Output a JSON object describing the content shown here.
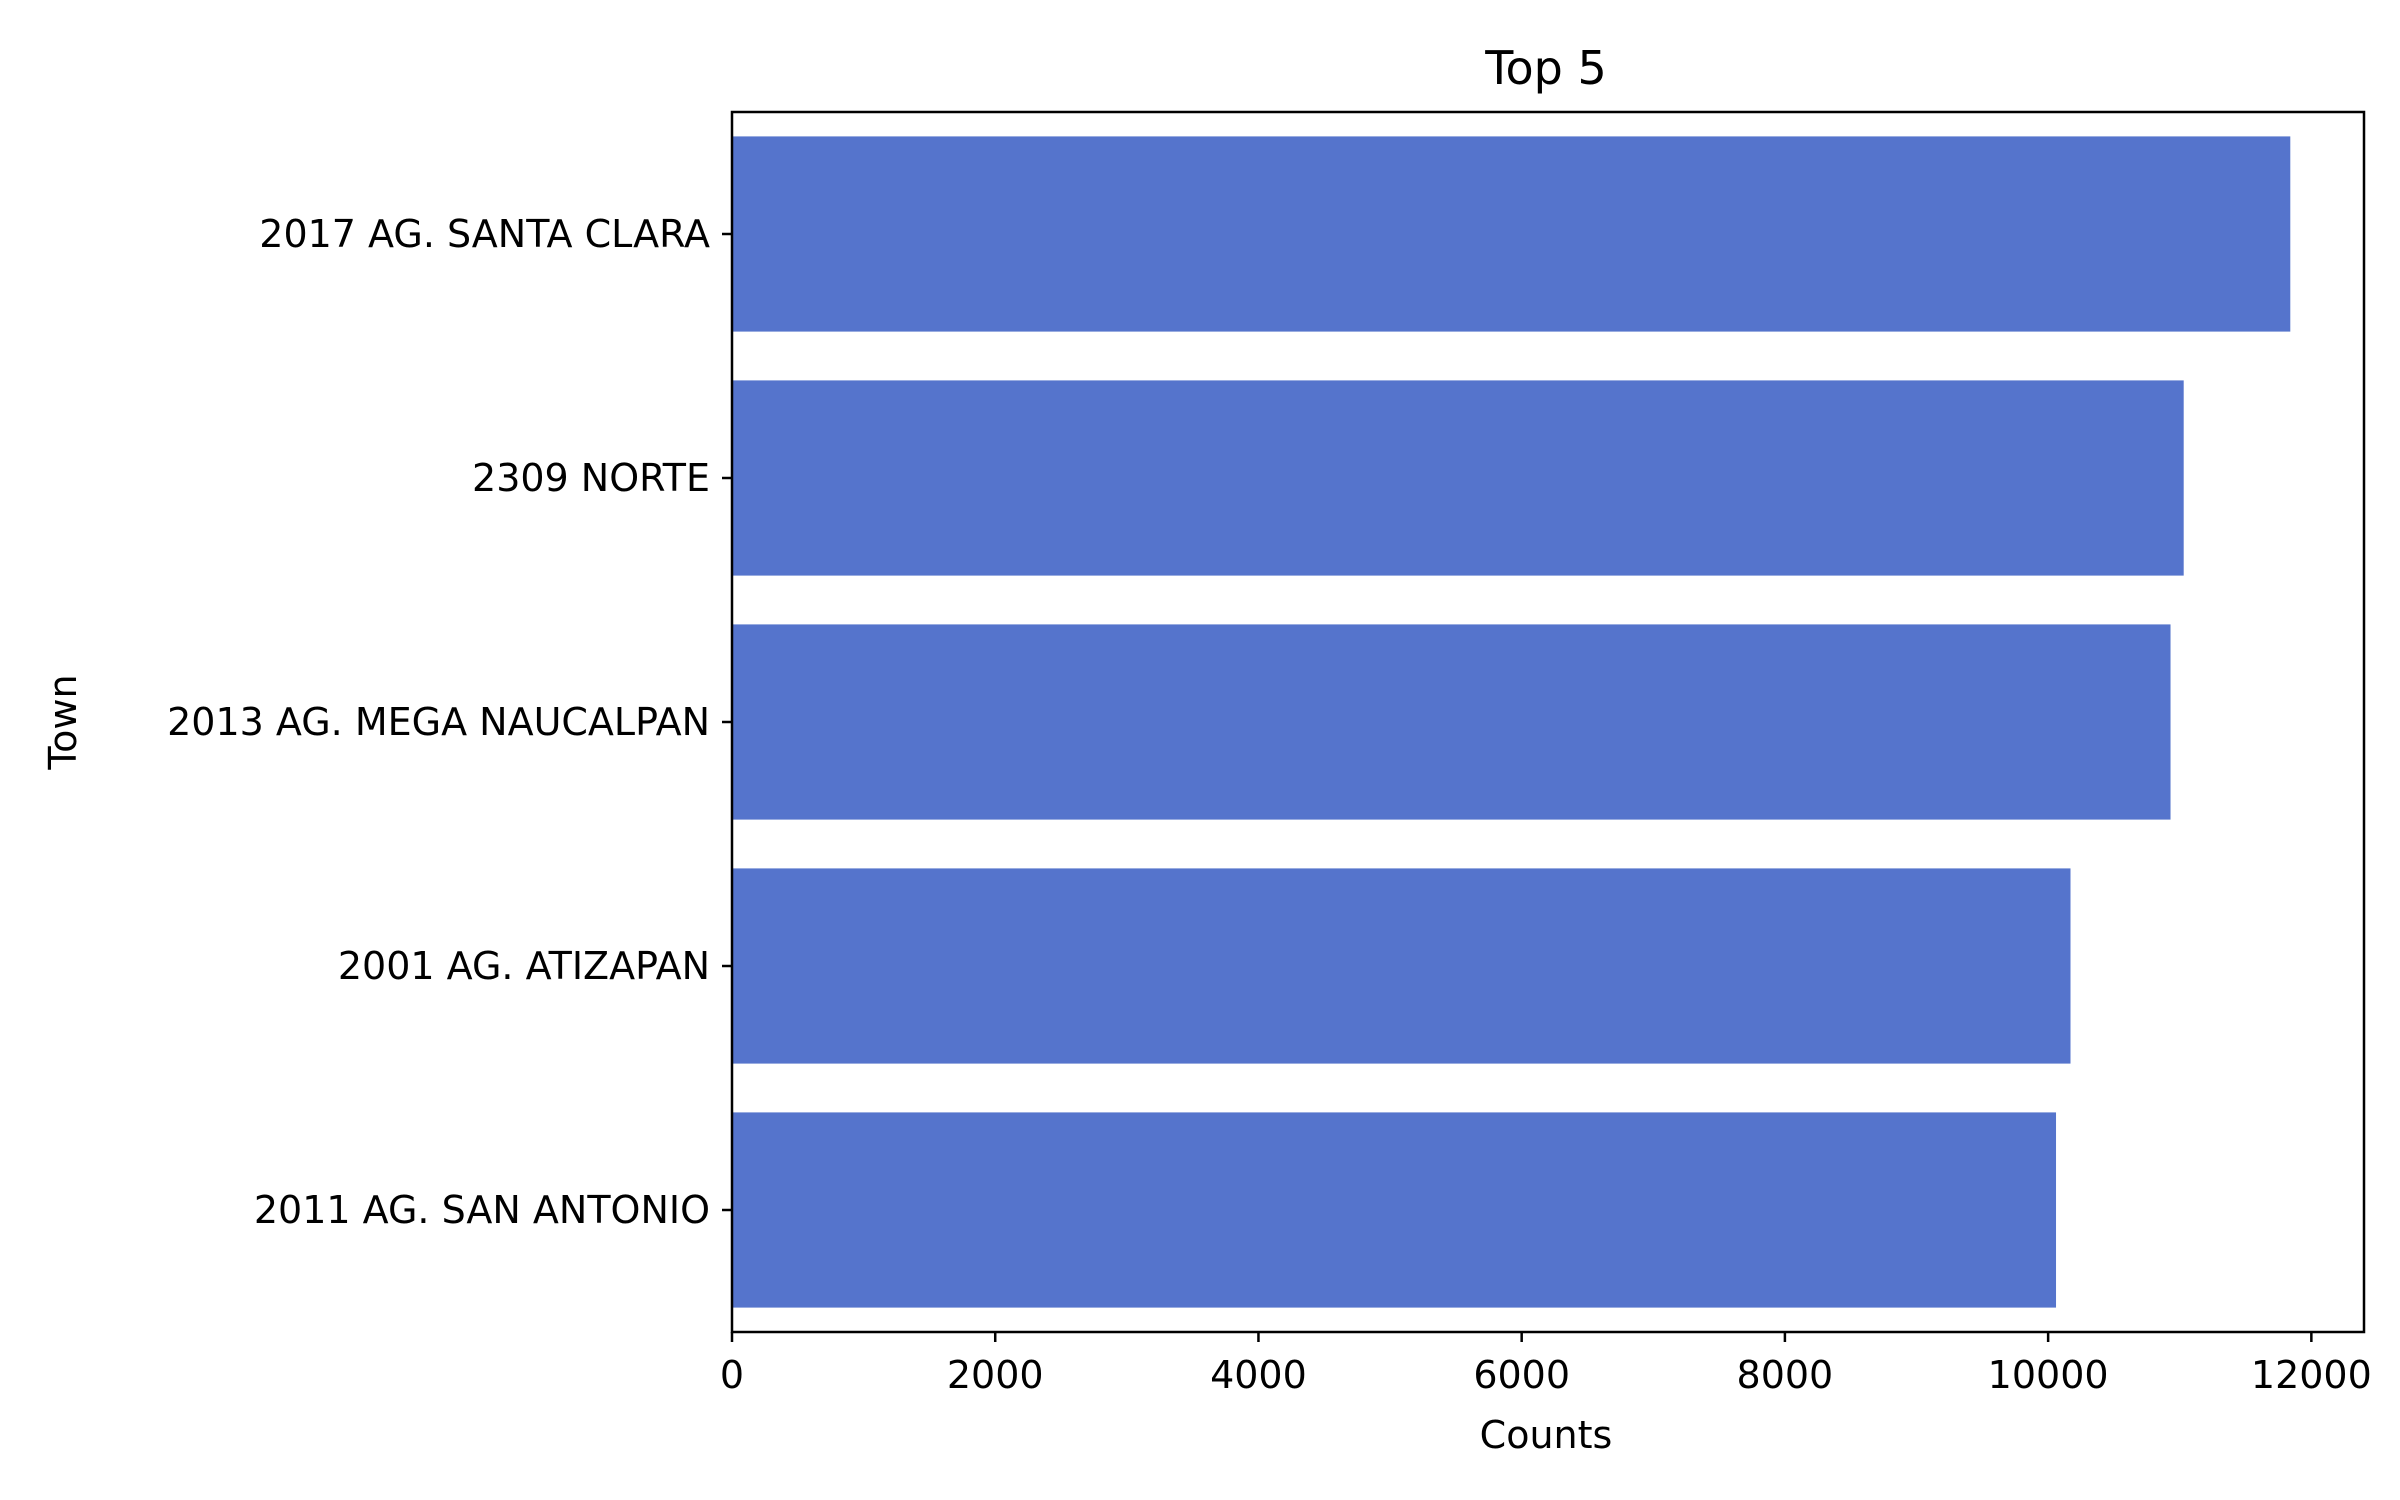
{
  "chart_data": {
    "type": "bar",
    "orientation": "horizontal",
    "title": "Top 5",
    "xlabel": "Counts",
    "ylabel": "Town",
    "categories": [
      "2017 AG. SANTA CLARA",
      "2309 NORTE",
      "2013 AG. MEGA NAUCALPAN",
      "2001 AG. ATIZAPAN",
      "2011 AG. SAN ANTONIO"
    ],
    "values": [
      11840,
      11030,
      10930,
      10170,
      10060
    ],
    "xlim": [
      0,
      12400
    ],
    "xticks": [
      0,
      2000,
      4000,
      6000,
      8000,
      10000,
      12000
    ],
    "xtick_labels": [
      "0",
      "2000",
      "4000",
      "6000",
      "8000",
      "10000",
      "12000"
    ],
    "bar_color": "#5574cc",
    "grid": false,
    "legend": false
  }
}
